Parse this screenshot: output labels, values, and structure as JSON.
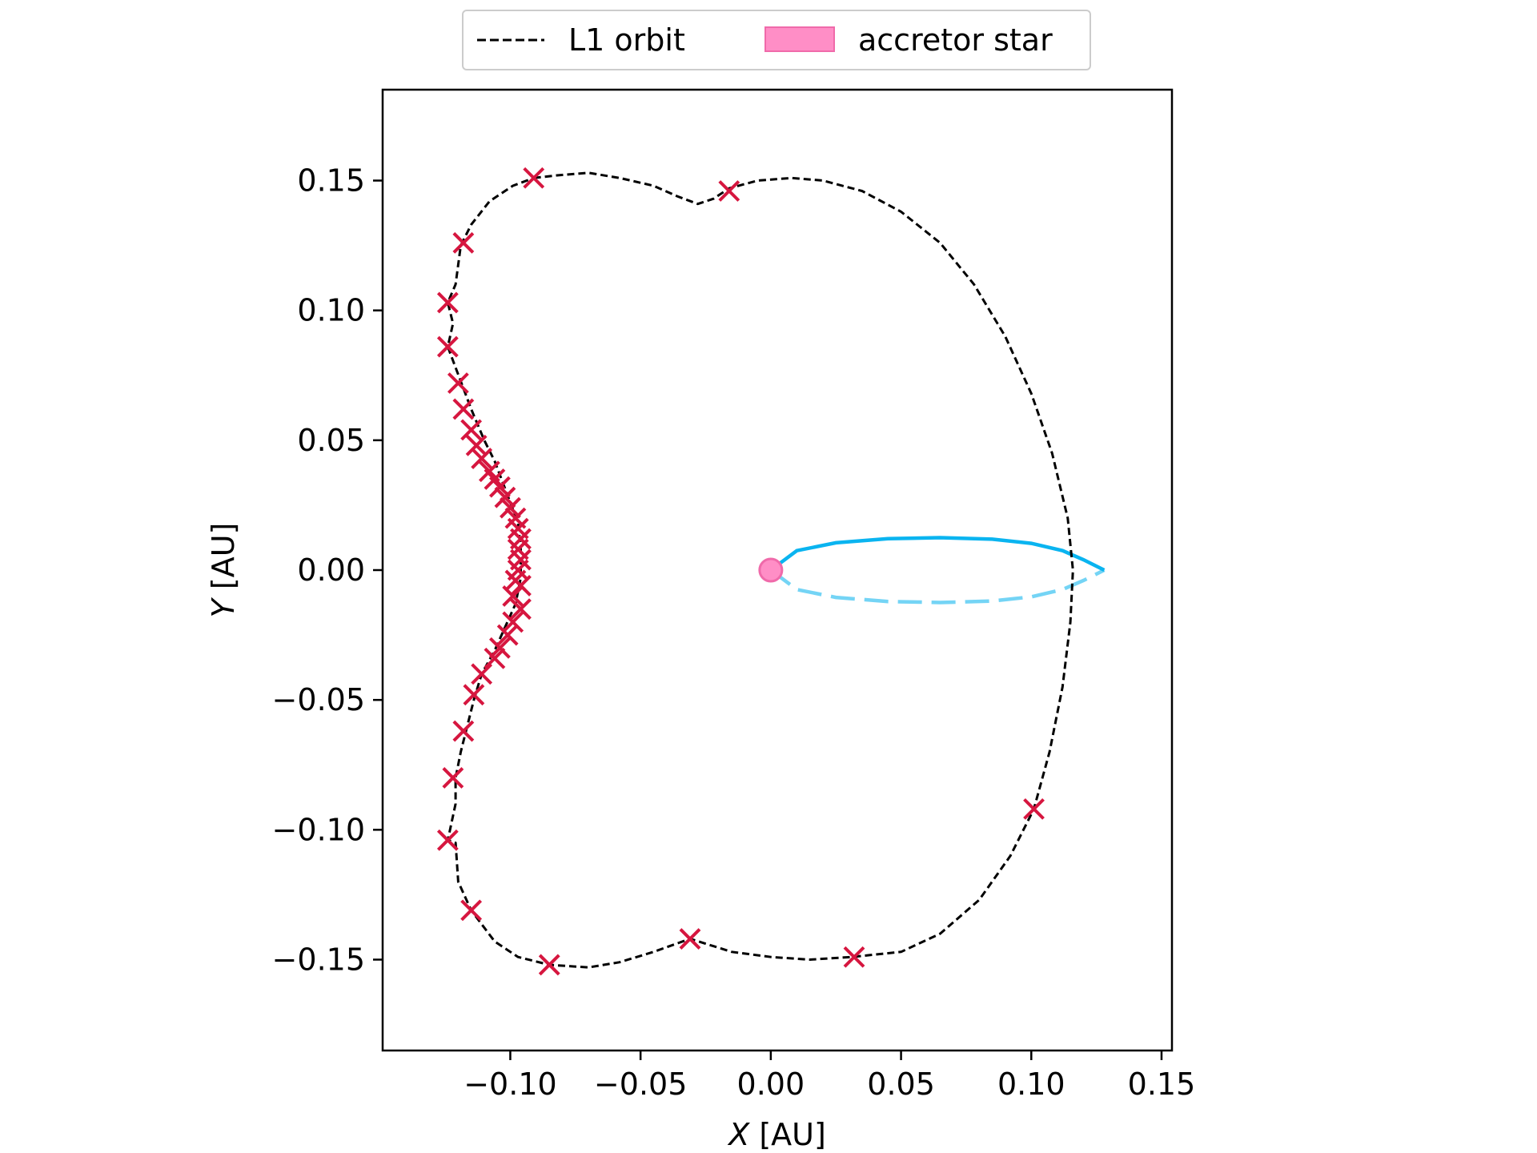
{
  "chart_data": {
    "type": "line",
    "xlabel": {
      "var": "X",
      "unit": " [AU]"
    },
    "ylabel": {
      "var": "Y",
      "unit": " [AU]"
    },
    "xlim": [
      -0.149,
      0.154
    ],
    "ylim": [
      -0.185,
      0.185
    ],
    "xticks": [
      -0.1,
      -0.05,
      0.0,
      0.05,
      0.1,
      0.15
    ],
    "yticks": [
      -0.15,
      -0.1,
      -0.05,
      0.0,
      0.05,
      0.1,
      0.15
    ],
    "xtick_labels": [
      "−0.10",
      "−0.05",
      "0.00",
      "0.05",
      "0.10",
      "0.15"
    ],
    "ytick_labels": [
      "−0.15",
      "−0.10",
      "−0.05",
      "0.00",
      "0.05",
      "0.10",
      "0.15"
    ],
    "grid": false,
    "legend": {
      "placement": "above-center",
      "entries": [
        {
          "label": "L1 orbit",
          "style": "dashed-line",
          "color": "#000000"
        },
        {
          "label": "accretor star",
          "style": "patch",
          "color": "#ff8ec6"
        }
      ]
    },
    "colors": {
      "l1_orbit": "#000000",
      "markers": "#d6163f",
      "accretor": "#ff8ec6",
      "accretor_edge": "#f06aaa",
      "orbit_front": "#0ab4f0",
      "orbit_back": "#74d4f5"
    },
    "series": [
      {
        "name": "L1 orbit",
        "kind": "dashed-line",
        "points": [
          [
            -0.091,
            0.151
          ],
          [
            -0.082,
            0.152
          ],
          [
            -0.07,
            0.153
          ],
          [
            -0.058,
            0.151
          ],
          [
            -0.045,
            0.148
          ],
          [
            -0.036,
            0.144
          ],
          [
            -0.028,
            0.141
          ],
          [
            -0.022,
            0.143
          ],
          [
            -0.016,
            0.147
          ],
          [
            -0.005,
            0.15
          ],
          [
            0.008,
            0.151
          ],
          [
            0.02,
            0.15
          ],
          [
            0.035,
            0.146
          ],
          [
            0.05,
            0.138
          ],
          [
            0.065,
            0.126
          ],
          [
            0.078,
            0.11
          ],
          [
            0.09,
            0.09
          ],
          [
            0.1,
            0.068
          ],
          [
            0.108,
            0.045
          ],
          [
            0.114,
            0.02
          ],
          [
            0.116,
            0.0
          ],
          [
            0.115,
            -0.02
          ],
          [
            0.112,
            -0.045
          ],
          [
            0.107,
            -0.07
          ],
          [
            0.101,
            -0.092
          ],
          [
            0.092,
            -0.11
          ],
          [
            0.08,
            -0.127
          ],
          [
            0.065,
            -0.14
          ],
          [
            0.05,
            -0.147
          ],
          [
            0.031,
            -0.149
          ],
          [
            0.015,
            -0.15
          ],
          [
            0.0,
            -0.149
          ],
          [
            -0.015,
            -0.147
          ],
          [
            -0.031,
            -0.142
          ],
          [
            -0.045,
            -0.147
          ],
          [
            -0.058,
            -0.151
          ],
          [
            -0.07,
            -0.153
          ],
          [
            -0.085,
            -0.152
          ],
          [
            -0.097,
            -0.149
          ],
          [
            -0.106,
            -0.143
          ],
          [
            -0.115,
            -0.131
          ],
          [
            -0.12,
            -0.12
          ],
          [
            -0.121,
            -0.105
          ],
          [
            -0.124,
            -0.104
          ],
          [
            -0.121,
            -0.09
          ],
          [
            -0.121,
            -0.08
          ],
          [
            -0.119,
            -0.07
          ],
          [
            -0.117,
            -0.062
          ],
          [
            -0.114,
            -0.05
          ],
          [
            -0.111,
            -0.04
          ],
          [
            -0.106,
            -0.031
          ],
          [
            -0.102,
            -0.022
          ],
          [
            -0.098,
            -0.013
          ],
          [
            -0.096,
            -0.003
          ],
          [
            -0.096,
            0.008
          ],
          [
            -0.097,
            0.018
          ],
          [
            -0.1,
            0.026
          ],
          [
            -0.103,
            0.034
          ],
          [
            -0.106,
            0.042
          ],
          [
            -0.11,
            0.05
          ],
          [
            -0.115,
            0.062
          ],
          [
            -0.118,
            0.07
          ],
          [
            -0.121,
            0.078
          ],
          [
            -0.124,
            0.086
          ],
          [
            -0.122,
            0.095
          ],
          [
            -0.124,
            0.103
          ],
          [
            -0.121,
            0.11
          ],
          [
            -0.119,
            0.125
          ],
          [
            -0.115,
            0.133
          ],
          [
            -0.108,
            0.142
          ],
          [
            -0.099,
            0.148
          ],
          [
            -0.091,
            0.151
          ]
        ]
      },
      {
        "name": "markers",
        "kind": "x-marker",
        "points": [
          [
            -0.091,
            0.151
          ],
          [
            -0.016,
            0.146
          ],
          [
            -0.118,
            0.126
          ],
          [
            -0.124,
            0.103
          ],
          [
            -0.124,
            0.086
          ],
          [
            -0.12,
            0.072
          ],
          [
            -0.118,
            0.062
          ],
          [
            -0.115,
            0.054
          ],
          [
            -0.113,
            0.048
          ],
          [
            -0.111,
            0.043
          ],
          [
            -0.108,
            0.038
          ],
          [
            -0.106,
            0.035
          ],
          [
            -0.104,
            0.032
          ],
          [
            -0.102,
            0.028
          ],
          [
            -0.1,
            0.024
          ],
          [
            -0.098,
            0.02
          ],
          [
            -0.097,
            0.016
          ],
          [
            -0.096,
            0.012
          ],
          [
            -0.097,
            0.008
          ],
          [
            -0.096,
            0.004
          ],
          [
            -0.097,
            0.0
          ],
          [
            -0.098,
            -0.004
          ],
          [
            -0.096,
            -0.006
          ],
          [
            -0.099,
            -0.01
          ],
          [
            -0.096,
            -0.015
          ],
          [
            -0.099,
            -0.02
          ],
          [
            -0.101,
            -0.025
          ],
          [
            -0.104,
            -0.03
          ],
          [
            -0.106,
            -0.034
          ],
          [
            -0.111,
            -0.04
          ],
          [
            -0.114,
            -0.048
          ],
          [
            -0.118,
            -0.062
          ],
          [
            -0.122,
            -0.08
          ],
          [
            -0.124,
            -0.104
          ],
          [
            -0.115,
            -0.131
          ],
          [
            -0.085,
            -0.152
          ],
          [
            -0.031,
            -0.142
          ],
          [
            0.032,
            -0.149
          ],
          [
            0.101,
            -0.092
          ]
        ]
      },
      {
        "name": "orbit front",
        "kind": "solid-line",
        "points": [
          [
            0.0,
            0.0
          ],
          [
            0.01,
            0.0075
          ],
          [
            0.025,
            0.0105
          ],
          [
            0.045,
            0.0121
          ],
          [
            0.065,
            0.0125
          ],
          [
            0.085,
            0.0119
          ],
          [
            0.1,
            0.0103
          ],
          [
            0.112,
            0.0075
          ],
          [
            0.12,
            0.004
          ],
          [
            0.128,
            0.0
          ]
        ]
      },
      {
        "name": "orbit back",
        "kind": "dashed-line",
        "points": [
          [
            0.0,
            0.0
          ],
          [
            0.01,
            -0.0075
          ],
          [
            0.025,
            -0.0105
          ],
          [
            0.045,
            -0.0121
          ],
          [
            0.065,
            -0.0125
          ],
          [
            0.085,
            -0.0119
          ],
          [
            0.1,
            -0.0103
          ],
          [
            0.112,
            -0.0075
          ],
          [
            0.12,
            -0.004
          ],
          [
            0.128,
            0.0
          ]
        ]
      },
      {
        "name": "accretor star",
        "kind": "circle",
        "points": [
          [
            0.0,
            0.0
          ]
        ]
      }
    ]
  }
}
